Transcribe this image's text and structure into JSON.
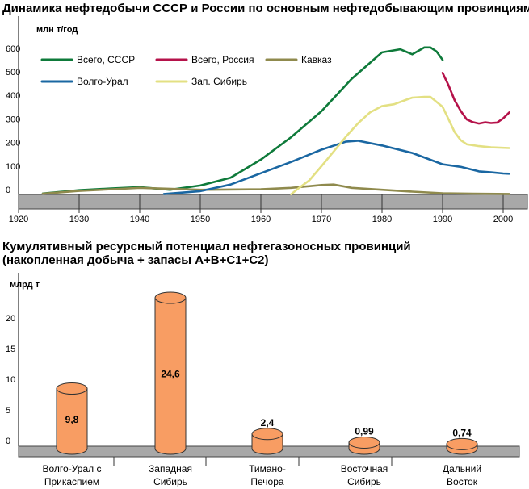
{
  "chart_data": [
    {
      "type": "line",
      "title": "Динамика нефтедобычи СССР и России по основным нефтедобывающим провинциям",
      "ylabel": "млн т/год",
      "xlim": [
        1920,
        2003
      ],
      "ylim": [
        0,
        650
      ],
      "x_ticks": [
        "1920",
        "1930",
        "1940",
        "1950",
        "1960",
        "1970",
        "1980",
        "1990",
        "2000"
      ],
      "y_ticks": [
        "0",
        "100",
        "200",
        "300",
        "400",
        "500",
        "600"
      ],
      "grid": false,
      "legend": "top-left",
      "series": [
        {
          "name": "Всего, СССР",
          "color": "#0e7a3a",
          "points": [
            [
              1924,
              4
            ],
            [
              1930,
              18
            ],
            [
              1935,
              25
            ],
            [
              1940,
              31
            ],
            [
              1945,
              20
            ],
            [
              1950,
              38
            ],
            [
              1955,
              71
            ],
            [
              1960,
              148
            ],
            [
              1965,
              243
            ],
            [
              1970,
              353
            ],
            [
              1975,
              491
            ],
            [
              1980,
              603
            ],
            [
              1983,
              616
            ],
            [
              1985,
              595
            ],
            [
              1987,
              624
            ],
            [
              1988,
              624
            ],
            [
              1989,
              607
            ],
            [
              1990,
              571
            ]
          ]
        },
        {
          "name": "Всего, Россия",
          "color": "#b5124a",
          "points": [
            [
              1990,
              516
            ],
            [
              1991,
              462
            ],
            [
              1992,
              399
            ],
            [
              1993,
              354
            ],
            [
              1994,
              318
            ],
            [
              1995,
              307
            ],
            [
              1996,
              301
            ],
            [
              1997,
              306
            ],
            [
              1998,
              303
            ],
            [
              1999,
              305
            ],
            [
              2000,
              323
            ],
            [
              2001,
              348
            ]
          ]
        },
        {
          "name": "Кавказ",
          "color": "#8f8a4d",
          "points": [
            [
              1924,
              3
            ],
            [
              1930,
              15
            ],
            [
              1940,
              28
            ],
            [
              1950,
              20
            ],
            [
              1960,
              22
            ],
            [
              1965,
              28
            ],
            [
              1970,
              40
            ],
            [
              1972,
              42
            ],
            [
              1975,
              28
            ],
            [
              1980,
              20
            ],
            [
              1985,
              12
            ],
            [
              1990,
              5
            ],
            [
              1995,
              3
            ],
            [
              2001,
              2
            ]
          ]
        },
        {
          "name": "Волго-Урал",
          "color": "#1a67a2",
          "points": [
            [
              1944,
              2
            ],
            [
              1950,
              14
            ],
            [
              1955,
              42
            ],
            [
              1960,
              90
            ],
            [
              1965,
              138
            ],
            [
              1970,
              190
            ],
            [
              1974,
              224
            ],
            [
              1976,
              228
            ],
            [
              1980,
              208
            ],
            [
              1985,
              176
            ],
            [
              1990,
              128
            ],
            [
              1993,
              117
            ],
            [
              1996,
              98
            ],
            [
              1998,
              94
            ],
            [
              2000,
              89
            ],
            [
              2001,
              88
            ]
          ]
        },
        {
          "name": "Зап. Сибирь",
          "color": "#e3e083",
          "points": [
            [
              1965,
              1
            ],
            [
              1966,
              22
            ],
            [
              1968,
              60
            ],
            [
              1970,
              120
            ],
            [
              1972,
              182
            ],
            [
              1974,
              244
            ],
            [
              1976,
              301
            ],
            [
              1978,
              348
            ],
            [
              1980,
              375
            ],
            [
              1982,
              383
            ],
            [
              1984,
              402
            ],
            [
              1985,
              411
            ],
            [
              1987,
              414
            ],
            [
              1988,
              414
            ],
            [
              1990,
              372
            ],
            [
              1991,
              318
            ],
            [
              1992,
              264
            ],
            [
              1993,
              230
            ],
            [
              1994,
              213
            ],
            [
              1996,
              205
            ],
            [
              1998,
              200
            ],
            [
              2001,
              197
            ]
          ]
        }
      ]
    },
    {
      "type": "bar",
      "title": "Кумулятивный ресурсный потенциал нефтегазоносных провинций",
      "subtitle": "(накопленная добыча + запасы А+В+С1+С2)",
      "ylabel": "млрд т",
      "ylim": [
        0,
        27
      ],
      "y_ticks": [
        "0",
        "5",
        "10",
        "15",
        "20"
      ],
      "categories": [
        "Волго-Урал с Прикаспием",
        "Западная Сибирь",
        "Тимано-Печора",
        "Восточная Сибирь",
        "Дальний Восток"
      ],
      "category_lines": [
        [
          "Волго-Урал с",
          "Прикаспием"
        ],
        [
          "Западная",
          "Сибирь"
        ],
        [
          "Тимано-",
          "Печора"
        ],
        [
          "Восточная",
          "Сибирь"
        ],
        [
          "Дальний",
          "Восток"
        ]
      ],
      "values": [
        9.8,
        24.6,
        2.4,
        0.99,
        0.74
      ],
      "value_labels": [
        "9,8",
        "24,6",
        "2,4",
        "0,99",
        "0,74"
      ],
      "bar_color": "#f89d63"
    }
  ]
}
